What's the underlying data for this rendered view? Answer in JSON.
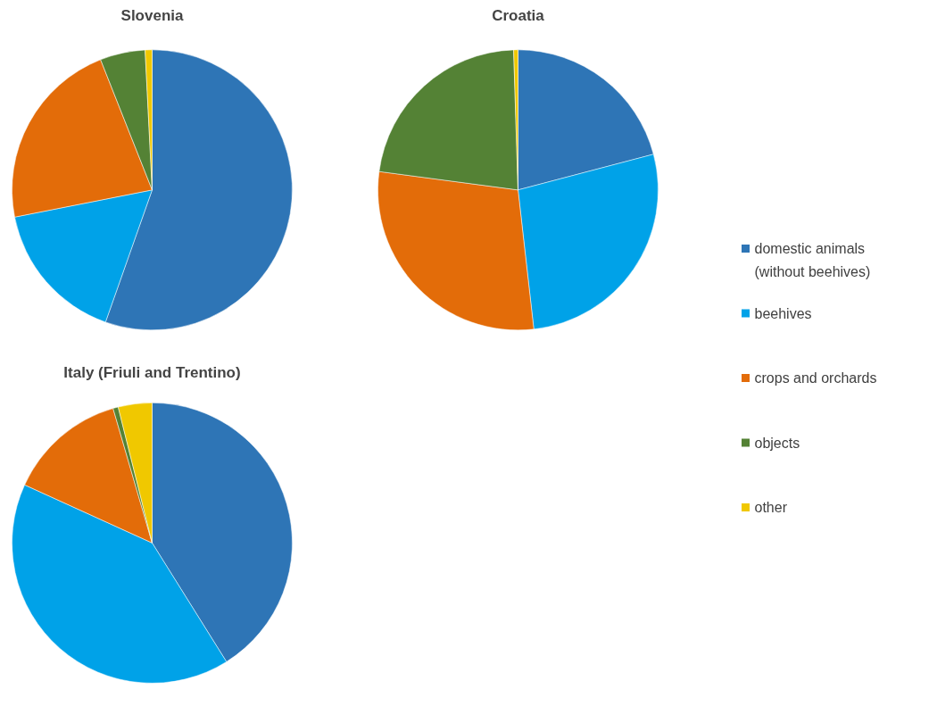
{
  "chart_data": [
    {
      "type": "pie",
      "title": "Slovenia",
      "categories": [
        "domestic animals (without beehives)",
        "beehives",
        "crops and orchards",
        "objects",
        "other"
      ],
      "values": [
        55.4,
        16.5,
        22.1,
        5.2,
        0.8
      ],
      "colors": [
        "#2e75b6",
        "#00a2e8",
        "#e36c09",
        "#548235",
        "#f0c800"
      ],
      "legend": "right"
    },
    {
      "type": "pie",
      "title": "Croatia",
      "categories": [
        null,
        null,
        null,
        null,
        null
      ],
      "values": [
        20.9,
        27.3,
        28.9,
        22.4,
        0.5
      ],
      "colors": [
        "#2e75b6",
        "#00a2e8",
        "#e36c09",
        "#548235",
        "#f0c800"
      ]
    },
    {
      "type": "pie",
      "title": "Italy (Friuli and Trentino)",
      "categories": [
        null,
        null,
        null,
        null,
        null
      ],
      "values": [
        41.1,
        40.7,
        13.7,
        0.6,
        3.9
      ],
      "colors": [
        "#2e75b6",
        "#00a2e8",
        "#e36c09",
        "#548235",
        "#f0c800"
      ]
    }
  ]
}
